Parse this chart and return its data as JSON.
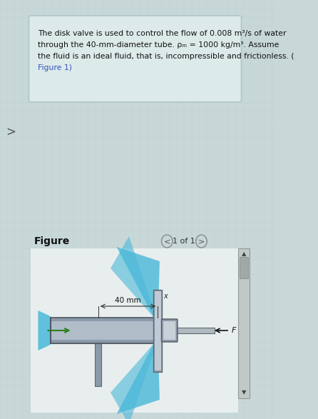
{
  "bg_color": "#d6e8e8",
  "page_bg": "#c8d8d8",
  "text_box_bg": "#ddeaea",
  "text_box_border": "#b0c8c8",
  "figure_label": "Figure",
  "nav_text": "1 of 1",
  "label_40mm": "40 mm",
  "label_F": "F",
  "label_x": "x",
  "tube_color": "#8a9aaa",
  "tube_color2": "#b0bcc8",
  "water_color": "#4ab8d8",
  "water_alpha": 0.85,
  "disk_color": "#909aaa",
  "rod_color": "#b0b8c0",
  "arrow_color": "#2d8020",
  "link_color": "#3355bb",
  "line1": "The disk valve is used to control the flow of 0.008 m³/s of water",
  "line2": "through the 40-mm-diameter tube. ρₘ = 1000 kg/m³. Assume",
  "line3": "the fluid is an ideal fluid, that is, incompressible and frictionless. (",
  "line4": "Figure 1)"
}
